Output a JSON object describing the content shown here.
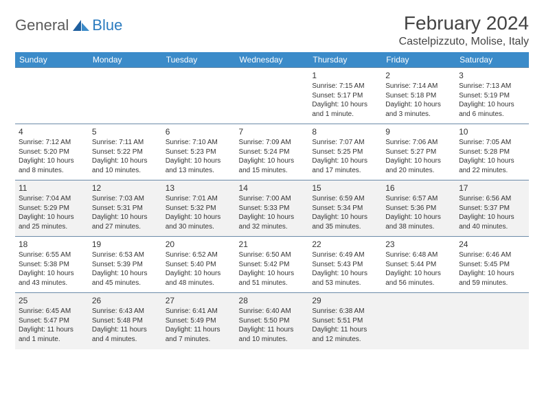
{
  "logo": {
    "general": "General",
    "blue": "Blue"
  },
  "title": "February 2024",
  "location": "Castelpizzuto, Molise, Italy",
  "colors": {
    "header_bg": "#3b8bc9",
    "header_fg": "#ffffff",
    "border": "#6a8aa8",
    "alt_row_bg": "#f2f2f2",
    "logo_general": "#5a5a5a",
    "logo_blue": "#2b7bbf"
  },
  "weekdays": [
    "Sunday",
    "Monday",
    "Tuesday",
    "Wednesday",
    "Thursday",
    "Friday",
    "Saturday"
  ],
  "weeks": [
    [
      null,
      null,
      null,
      null,
      {
        "n": "1",
        "sr": "7:15 AM",
        "ss": "5:17 PM",
        "dl": "10 hours and 1 minute."
      },
      {
        "n": "2",
        "sr": "7:14 AM",
        "ss": "5:18 PM",
        "dl": "10 hours and 3 minutes."
      },
      {
        "n": "3",
        "sr": "7:13 AM",
        "ss": "5:19 PM",
        "dl": "10 hours and 6 minutes."
      }
    ],
    [
      {
        "n": "4",
        "sr": "7:12 AM",
        "ss": "5:20 PM",
        "dl": "10 hours and 8 minutes."
      },
      {
        "n": "5",
        "sr": "7:11 AM",
        "ss": "5:22 PM",
        "dl": "10 hours and 10 minutes."
      },
      {
        "n": "6",
        "sr": "7:10 AM",
        "ss": "5:23 PM",
        "dl": "10 hours and 13 minutes."
      },
      {
        "n": "7",
        "sr": "7:09 AM",
        "ss": "5:24 PM",
        "dl": "10 hours and 15 minutes."
      },
      {
        "n": "8",
        "sr": "7:07 AM",
        "ss": "5:25 PM",
        "dl": "10 hours and 17 minutes."
      },
      {
        "n": "9",
        "sr": "7:06 AM",
        "ss": "5:27 PM",
        "dl": "10 hours and 20 minutes."
      },
      {
        "n": "10",
        "sr": "7:05 AM",
        "ss": "5:28 PM",
        "dl": "10 hours and 22 minutes."
      }
    ],
    [
      {
        "n": "11",
        "sr": "7:04 AM",
        "ss": "5:29 PM",
        "dl": "10 hours and 25 minutes."
      },
      {
        "n": "12",
        "sr": "7:03 AM",
        "ss": "5:31 PM",
        "dl": "10 hours and 27 minutes."
      },
      {
        "n": "13",
        "sr": "7:01 AM",
        "ss": "5:32 PM",
        "dl": "10 hours and 30 minutes."
      },
      {
        "n": "14",
        "sr": "7:00 AM",
        "ss": "5:33 PM",
        "dl": "10 hours and 32 minutes."
      },
      {
        "n": "15",
        "sr": "6:59 AM",
        "ss": "5:34 PM",
        "dl": "10 hours and 35 minutes."
      },
      {
        "n": "16",
        "sr": "6:57 AM",
        "ss": "5:36 PM",
        "dl": "10 hours and 38 minutes."
      },
      {
        "n": "17",
        "sr": "6:56 AM",
        "ss": "5:37 PM",
        "dl": "10 hours and 40 minutes."
      }
    ],
    [
      {
        "n": "18",
        "sr": "6:55 AM",
        "ss": "5:38 PM",
        "dl": "10 hours and 43 minutes."
      },
      {
        "n": "19",
        "sr": "6:53 AM",
        "ss": "5:39 PM",
        "dl": "10 hours and 45 minutes."
      },
      {
        "n": "20",
        "sr": "6:52 AM",
        "ss": "5:40 PM",
        "dl": "10 hours and 48 minutes."
      },
      {
        "n": "21",
        "sr": "6:50 AM",
        "ss": "5:42 PM",
        "dl": "10 hours and 51 minutes."
      },
      {
        "n": "22",
        "sr": "6:49 AM",
        "ss": "5:43 PM",
        "dl": "10 hours and 53 minutes."
      },
      {
        "n": "23",
        "sr": "6:48 AM",
        "ss": "5:44 PM",
        "dl": "10 hours and 56 minutes."
      },
      {
        "n": "24",
        "sr": "6:46 AM",
        "ss": "5:45 PM",
        "dl": "10 hours and 59 minutes."
      }
    ],
    [
      {
        "n": "25",
        "sr": "6:45 AM",
        "ss": "5:47 PM",
        "dl": "11 hours and 1 minute."
      },
      {
        "n": "26",
        "sr": "6:43 AM",
        "ss": "5:48 PM",
        "dl": "11 hours and 4 minutes."
      },
      {
        "n": "27",
        "sr": "6:41 AM",
        "ss": "5:49 PM",
        "dl": "11 hours and 7 minutes."
      },
      {
        "n": "28",
        "sr": "6:40 AM",
        "ss": "5:50 PM",
        "dl": "11 hours and 10 minutes."
      },
      {
        "n": "29",
        "sr": "6:38 AM",
        "ss": "5:51 PM",
        "dl": "11 hours and 12 minutes."
      },
      null,
      null
    ]
  ],
  "labels": {
    "sunrise": "Sunrise: ",
    "sunset": "Sunset: ",
    "daylight": "Daylight: "
  }
}
